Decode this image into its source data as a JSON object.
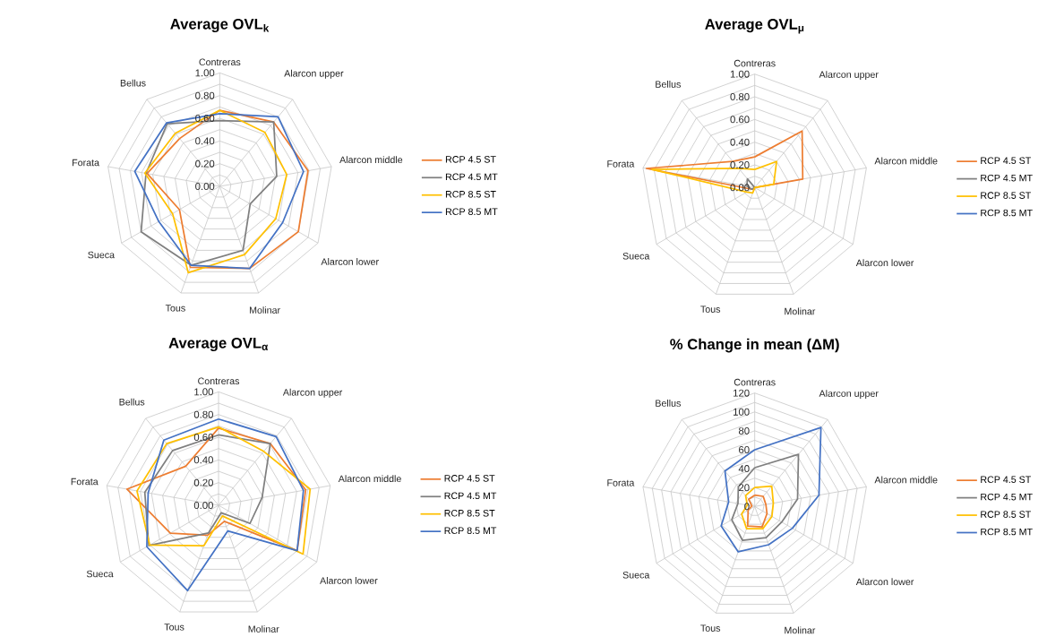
{
  "chart_data": [
    {
      "type": "radar",
      "title": "Average OVL$_{k}$",
      "categories": [
        "Contreras",
        "Alarcon upper",
        "Alarcon middle",
        "Alarcon lower",
        "Molinar",
        "Tous",
        "Sueca",
        "Forata",
        "Bellus"
      ],
      "ylim": [
        0,
        1
      ],
      "yticks": [
        {
          "value": 0,
          "label": "0.00"
        },
        {
          "value": 0.2,
          "label": "0.20"
        },
        {
          "value": 0.4,
          "label": "0.40"
        },
        {
          "value": 0.6,
          "label": "0.60"
        },
        {
          "value": 0.8,
          "label": "0.80"
        },
        {
          "value": 1,
          "label": "1.00"
        }
      ],
      "grid": true,
      "legend": "right",
      "series": [
        {
          "name": "RCP 4.5 ST",
          "color": "#ed7d31",
          "values": [
            0.67,
            0.74,
            0.79,
            0.8,
            0.77,
            0.76,
            0.41,
            0.65,
            0.55
          ]
        },
        {
          "name": "RCP 4.5 MT",
          "color": "#7f7f7f",
          "values": [
            0.58,
            0.74,
            0.51,
            0.31,
            0.6,
            0.74,
            0.8,
            0.66,
            0.72
          ]
        },
        {
          "name": "RCP 8.5 ST",
          "color": "#ffc000",
          "values": [
            0.67,
            0.62,
            0.6,
            0.57,
            0.64,
            0.81,
            0.48,
            0.67,
            0.61
          ]
        },
        {
          "name": "RCP 8.5 MT",
          "color": "#4472c4",
          "values": [
            0.64,
            0.8,
            0.75,
            0.64,
            0.77,
            0.74,
            0.62,
            0.76,
            0.73
          ]
        }
      ]
    },
    {
      "type": "radar",
      "title": "Average OVL$_{μ}$",
      "categories": [
        "Contreras",
        "Alarcon upper",
        "Alarcon middle",
        "Alarcon lower",
        "Molinar",
        "Tous",
        "Sueca",
        "Forata",
        "Bellus"
      ],
      "ylim": [
        0,
        1
      ],
      "yticks": [
        {
          "value": 0,
          "label": "0.00"
        },
        {
          "value": 0.2,
          "label": "0.20"
        },
        {
          "value": 0.4,
          "label": "0.40"
        },
        {
          "value": 0.6,
          "label": "0.60"
        },
        {
          "value": 0.8,
          "label": "0.80"
        },
        {
          "value": 1,
          "label": "1.00"
        }
      ],
      "grid": true,
      "legend": "right",
      "series": [
        {
          "name": "RCP 4.5 ST",
          "color": "#ed7d31",
          "values": [
            0.27,
            0.65,
            0.43,
            0,
            0,
            0.02,
            0.03,
            0.97,
            0.3
          ]
        },
        {
          "name": "RCP 4.5 MT",
          "color": "#7f7f7f",
          "values": [
            0,
            0,
            0,
            0,
            0,
            0,
            0.03,
            0.07,
            0.1
          ]
        },
        {
          "name": "RCP 8.5 ST",
          "color": "#ffc000",
          "values": [
            0.16,
            0.3,
            0.17,
            0,
            0,
            0.05,
            0.08,
            0.92,
            0.22
          ]
        },
        {
          "name": "RCP 8.5 MT",
          "color": "#4472c4",
          "values": [
            null,
            null,
            null,
            null,
            null,
            null,
            null,
            null,
            null
          ]
        }
      ]
    },
    {
      "type": "radar",
      "title": "Average OVL$_{α}$",
      "categories": [
        "Contreras",
        "Alarcon upper",
        "Alarcon middle",
        "Alarcon lower",
        "Molinar",
        "Tous",
        "Sueca",
        "Forata",
        "Bellus"
      ],
      "ylim": [
        0,
        1
      ],
      "yticks": [
        {
          "value": 0,
          "label": "0.00"
        },
        {
          "value": 0.2,
          "label": "0.20"
        },
        {
          "value": 0.4,
          "label": "0.40"
        },
        {
          "value": 0.6,
          "label": "0.60"
        },
        {
          "value": 0.8,
          "label": "0.80"
        },
        {
          "value": 1,
          "label": "1.00"
        }
      ],
      "grid": true,
      "legend": "right",
      "series": [
        {
          "name": "RCP 4.5 ST",
          "color": "#ed7d31",
          "values": [
            0.68,
            0.71,
            0.78,
            0.8,
            0.15,
            0.28,
            0.49,
            0.82,
            0.45
          ]
        },
        {
          "name": "RCP 4.5 MT",
          "color": "#7f7f7f",
          "values": [
            0.62,
            0.71,
            0.39,
            0.32,
            0.07,
            0.26,
            0.71,
            0.66,
            0.63
          ]
        },
        {
          "name": "RCP 8.5 ST",
          "color": "#ffc000",
          "values": [
            0.69,
            0.62,
            0.82,
            0.86,
            0.1,
            0.38,
            0.7,
            0.73,
            0.71
          ]
        },
        {
          "name": "RCP 8.5 MT",
          "color": "#4472c4",
          "values": [
            0.76,
            0.79,
            0.76,
            0.8,
            0.24,
            0.8,
            0.73,
            0.63,
            0.75
          ]
        }
      ]
    },
    {
      "type": "radar",
      "title": "% Change in mean (ΔM)",
      "categories": [
        "Contreras",
        "Alarcon upper",
        "Alarcon middle",
        "Alarcon lower",
        "Molinar",
        "Tous",
        "Sueca",
        "Forata",
        "Bellus"
      ],
      "ylim": [
        0,
        120
      ],
      "yticks": [
        0,
        20,
        40,
        60,
        80,
        100,
        120
      ],
      "grid": true,
      "legend": "right",
      "series": [
        {
          "name": "RCP 4.5 ST",
          "color": "#ed7d31",
          "values": [
            12,
            14,
            12,
            15,
            23,
            22,
            8,
            3,
            10
          ]
        },
        {
          "name": "RCP 4.5 MT",
          "color": "#7f7f7f",
          "values": [
            41,
            72,
            46,
            33,
            35,
            38,
            28,
            18,
            27
          ]
        },
        {
          "name": "RCP 8.5 ST",
          "color": "#ffc000",
          "values": [
            20,
            28,
            20,
            21,
            25,
            25,
            16,
            8,
            15
          ]
        },
        {
          "name": "RCP 8.5 MT",
          "color": "#4472c4",
          "values": [
            60,
            109,
            69,
            46,
            43,
            51,
            41,
            28,
            49
          ]
        }
      ]
    }
  ]
}
